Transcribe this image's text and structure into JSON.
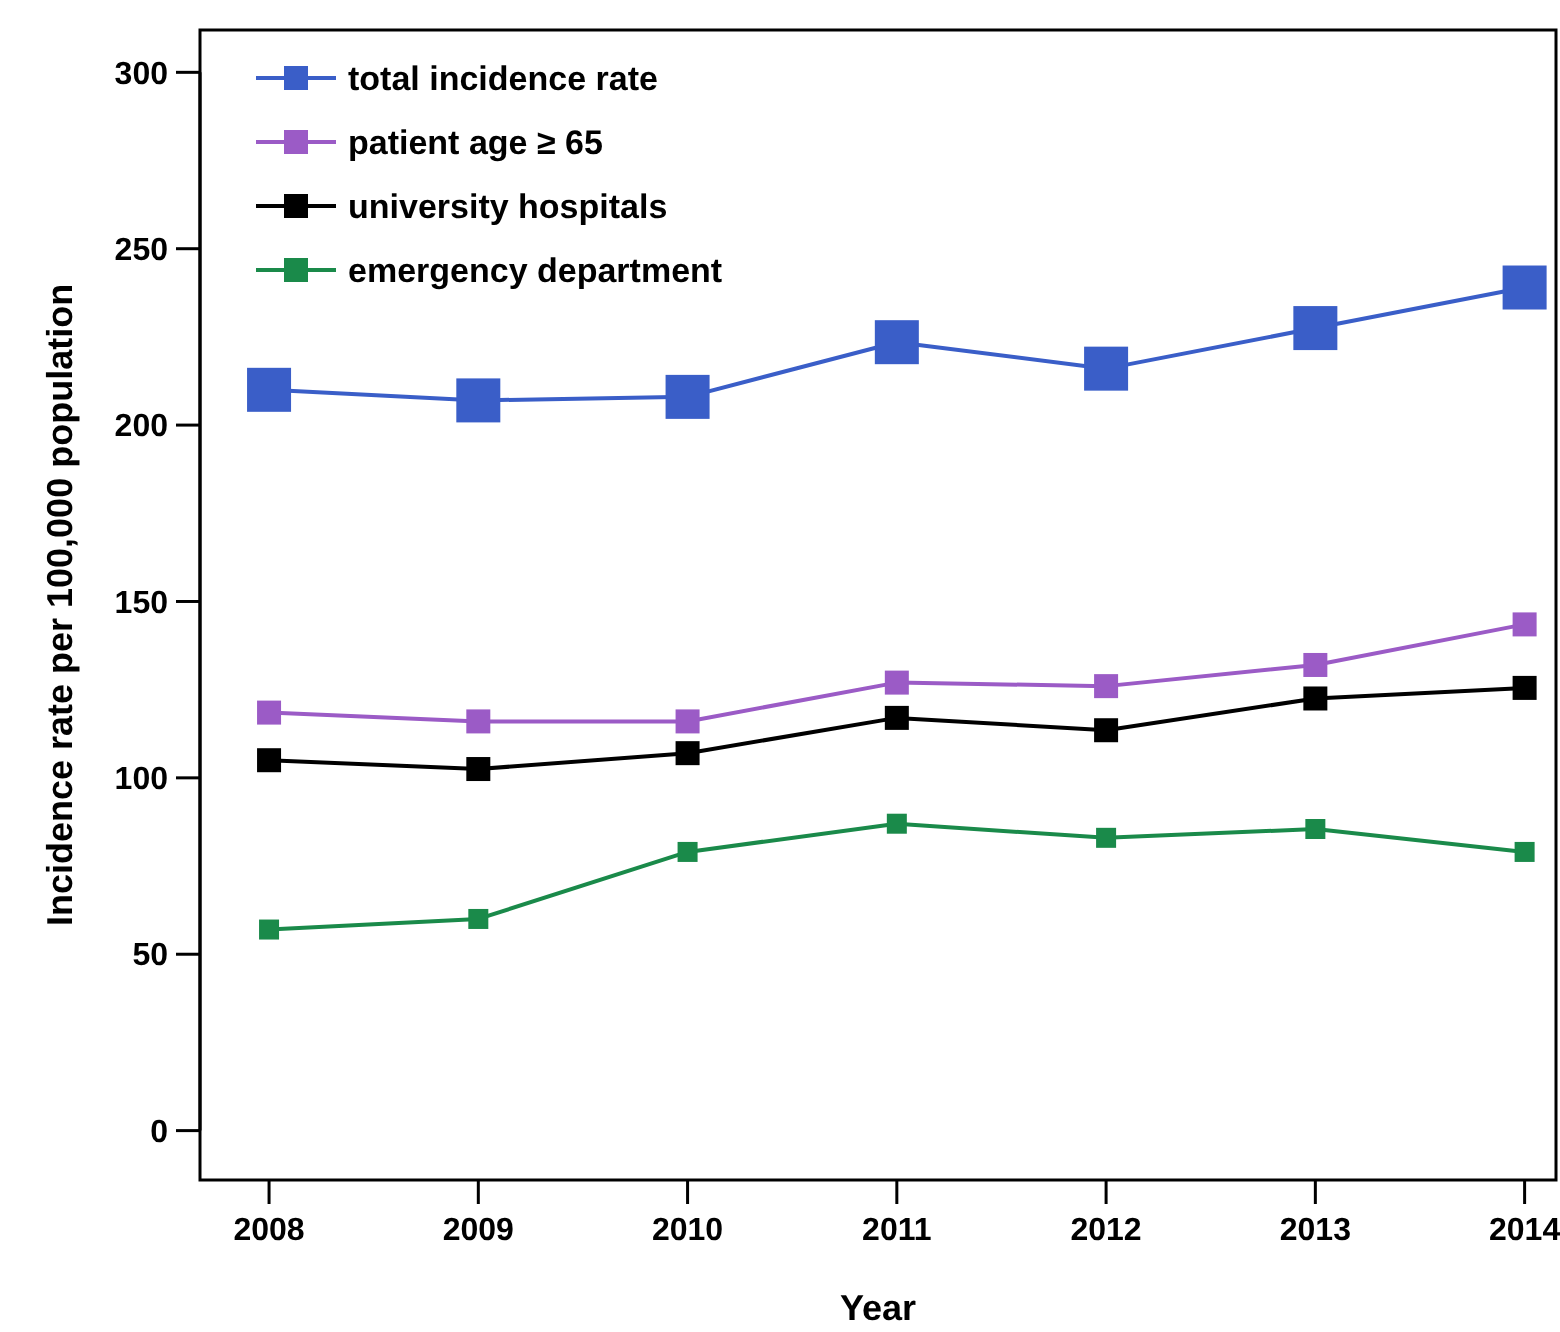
{
  "chart_data": {
    "type": "line",
    "xlabel": "Year",
    "ylabel": "Incidence rate per 100,000 population",
    "x": [
      2008,
      2009,
      2010,
      2011,
      2012,
      2013,
      2014
    ],
    "xlim": [
      2007.67,
      2014.15
    ],
    "xticks": [
      2008,
      2009,
      2010,
      2011,
      2012,
      2013,
      2014
    ],
    "ylim": [
      -14,
      312
    ],
    "yticks": [
      0,
      50,
      100,
      150,
      200,
      250,
      300
    ],
    "marker": "square",
    "line_style": "solid",
    "grid": false,
    "legend": "top left",
    "series": [
      {
        "name": "total incidence rate",
        "color": "#3a5ec8",
        "values": [
          210,
          207,
          208,
          223.5,
          216,
          227.5,
          239
        ]
      },
      {
        "name": "patient age ≥ 65",
        "color": "#9b5bc6",
        "values": [
          118.5,
          116,
          116,
          127,
          126,
          132,
          143.5
        ]
      },
      {
        "name": "university hospitals",
        "color": "#000000",
        "values": [
          105,
          102.5,
          107,
          117,
          113.5,
          122.5,
          125.5
        ]
      },
      {
        "name": "emergency department",
        "color": "#1a8a4a",
        "values": [
          57,
          60,
          79,
          87,
          83,
          85.5,
          79
        ]
      }
    ]
  }
}
